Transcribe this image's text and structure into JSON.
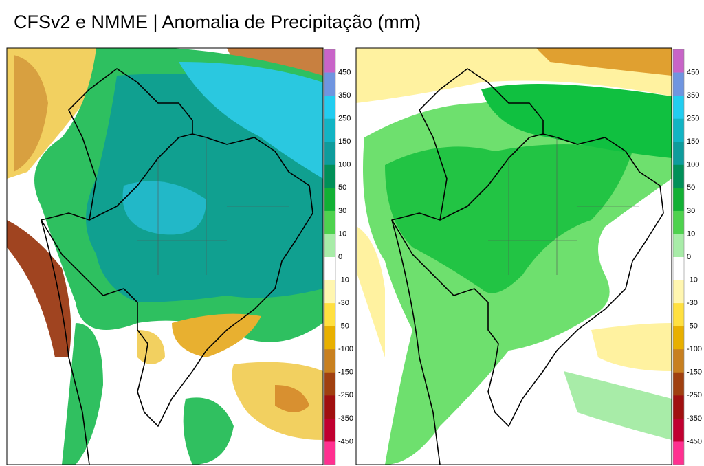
{
  "header": {
    "title": "CFSv2 e NMME | Anomalia de Precipitação (mm)"
  },
  "colorbar_colors": [
    "#c864c8",
    "#6f95e0",
    "#22cdf0",
    "#12b4c4",
    "#0e9c9c",
    "#009058",
    "#12b034",
    "#4ed24e",
    "#a8eca8",
    "#ffffff",
    "#fff6b0",
    "#ffe040",
    "#e8b000",
    "#c88020",
    "#a04010",
    "#a01010",
    "#c00030",
    "#ff3090"
  ],
  "panels": [
    {
      "colorbar": {
        "labels": [
          "450",
          "350",
          "250",
          "150",
          "100",
          "50",
          "30",
          "10",
          "0",
          "-10",
          "-30",
          "-50",
          "-100",
          "-150",
          "-250",
          "-350",
          "-450"
        ]
      }
    },
    {
      "colorbar": {
        "labels": [
          "450",
          "350",
          "250",
          "150",
          "100",
          "50",
          "30",
          "10",
          "0",
          "-10",
          "-30",
          "-50",
          "-100",
          "-150",
          "-250",
          "-350",
          "-450"
        ]
      }
    }
  ]
}
